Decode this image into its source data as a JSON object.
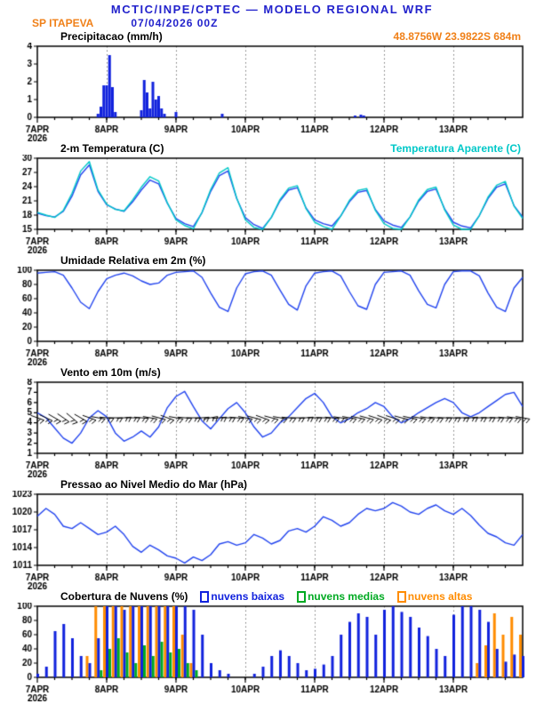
{
  "header": {
    "title": "MCTIC/INPE/CPTEC — MODELO REGIONAL WRF",
    "station": "SP ITAPEVA",
    "run": "07/04/2026 00Z",
    "location": "48.8756W 23.9822S 684m"
  },
  "colors": {
    "blue": "#2222cc",
    "orange": "#f08018",
    "line_blue": "#2244ee",
    "cyan": "#00c8c8",
    "green": "#00aa22",
    "bar_orange": "#ff8c00",
    "black": "#000000"
  },
  "x_axis": {
    "labels": [
      "7APR",
      "8APR",
      "9APR",
      "10APR",
      "11APR",
      "12APR",
      "13APR"
    ],
    "day_hours": [
      0,
      24,
      48,
      72,
      96,
      120,
      144
    ],
    "hours_total": 168,
    "year": "2026"
  },
  "chart_data": [
    {
      "type": "bar",
      "title": "Precipitacao (mm/h)",
      "ylim": [
        0,
        4
      ],
      "yticks": [
        0,
        1,
        2,
        3,
        4
      ],
      "color": "#1122dd",
      "points": [
        [
          21,
          0.2
        ],
        [
          22,
          0.6
        ],
        [
          23,
          1.8
        ],
        [
          24,
          1.8
        ],
        [
          25,
          3.5
        ],
        [
          26,
          1.7
        ],
        [
          27,
          0.3
        ],
        [
          36,
          0.4
        ],
        [
          37,
          2.1
        ],
        [
          38,
          1.4
        ],
        [
          39,
          0.5
        ],
        [
          40,
          2.0
        ],
        [
          41,
          1.0
        ],
        [
          42,
          1.2
        ],
        [
          43,
          0.5
        ],
        [
          44,
          0.2
        ],
        [
          48,
          0.3
        ],
        [
          64,
          0.2
        ],
        [
          110,
          0.1
        ],
        [
          112,
          0.15
        ],
        [
          113,
          0.1
        ]
      ]
    },
    {
      "type": "line",
      "title": "2-m Temperatura (C)",
      "right_label": "Temperatura Aparente (C)",
      "ylim": [
        15,
        30
      ],
      "yticks": [
        15,
        18,
        21,
        24,
        27,
        30
      ],
      "step_hours": 3,
      "series": [
        {
          "name": "2-m Temperatura (C)",
          "color": "#2244ee",
          "values": [
            18.4,
            17.9,
            17.6,
            18.8,
            22.0,
            26.5,
            28.6,
            23.0,
            20.2,
            19.3,
            18.8,
            20.8,
            23.3,
            25.4,
            24.6,
            20.5,
            17.3,
            16.2,
            15.6,
            18.5,
            23.0,
            26.3,
            27.3,
            21.5,
            17.5,
            16.0,
            15.2,
            17.5,
            21.0,
            23.3,
            23.8,
            19.5,
            17.0,
            16.2,
            15.7,
            17.8,
            20.8,
            22.8,
            23.2,
            19.2,
            16.8,
            15.9,
            15.4,
            17.6,
            20.9,
            23.0,
            23.5,
            19.3,
            16.5,
            15.7,
            15.3,
            17.9,
            21.5,
            23.9,
            24.6,
            20.0,
            17.6
          ]
        },
        {
          "name": "Temperatura Aparente (C)",
          "color": "#00c8c8",
          "values": [
            18.6,
            18.0,
            17.5,
            19.0,
            22.6,
            27.3,
            29.3,
            23.3,
            20.3,
            19.2,
            18.9,
            21.2,
            23.9,
            26.1,
            25.2,
            20.6,
            17.0,
            15.8,
            15.1,
            18.6,
            23.4,
            26.9,
            28.0,
            21.6,
            17.0,
            15.4,
            14.6,
            17.5,
            21.3,
            23.7,
            24.2,
            19.4,
            16.5,
            15.6,
            15.0,
            17.8,
            21.1,
            23.2,
            23.6,
            19.0,
            16.2,
            15.2,
            14.7,
            17.6,
            21.2,
            23.4,
            23.9,
            19.1,
            15.9,
            15.0,
            14.6,
            17.9,
            21.8,
            24.3,
            25.1,
            19.9,
            17.3
          ]
        }
      ]
    },
    {
      "type": "line",
      "title": "Umidade Relativa em 2m (%)",
      "ylim": [
        0,
        100
      ],
      "yticks": [
        0,
        20,
        40,
        60,
        80,
        100
      ],
      "step_hours": 3,
      "series": [
        {
          "name": "Umidade Relativa em 2m (%)",
          "color": "#2244ee",
          "values": [
            96,
            97,
            98,
            93,
            75,
            55,
            46,
            70,
            88,
            93,
            96,
            92,
            85,
            80,
            82,
            93,
            97,
            98,
            99,
            90,
            68,
            48,
            42,
            75,
            95,
            98,
            99,
            93,
            72,
            52,
            44,
            78,
            96,
            98,
            99,
            92,
            70,
            50,
            45,
            80,
            97,
            98,
            99,
            93,
            71,
            52,
            47,
            80,
            98,
            99,
            99,
            92,
            68,
            48,
            42,
            75,
            90
          ]
        }
      ]
    },
    {
      "type": "wind",
      "title": "Vento em 10m (m/s)",
      "ylim": [
        1,
        8
      ],
      "yticks": [
        1,
        2,
        3,
        4,
        5,
        6,
        7,
        8
      ],
      "step_hours": 3,
      "barb_y": 4.5,
      "series": [
        {
          "name": "Vento em 10m (m/s)",
          "color": "#2244ee",
          "values": [
            5.0,
            4.5,
            3.5,
            2.5,
            2.0,
            3.0,
            4.5,
            5.2,
            4.6,
            3.0,
            2.2,
            2.6,
            3.2,
            2.6,
            3.6,
            5.5,
            6.6,
            7.1,
            5.6,
            4.2,
            3.4,
            4.4,
            5.4,
            6.0,
            5.0,
            3.6,
            2.6,
            3.0,
            4.0,
            4.6,
            5.5,
            6.4,
            6.9,
            6.0,
            4.6,
            4.0,
            4.4,
            5.0,
            5.4,
            6.0,
            5.6,
            4.6,
            4.0,
            4.4,
            5.0,
            5.5,
            6.0,
            6.4,
            6.0,
            5.0,
            4.6,
            5.0,
            5.6,
            6.2,
            6.8,
            7.0,
            5.6
          ]
        }
      ],
      "barb_dirs": [
        110,
        115,
        120,
        125,
        130,
        120,
        110,
        100,
        95,
        90,
        85,
        90,
        95,
        100,
        105,
        110,
        100,
        95,
        90,
        85,
        80,
        85,
        90,
        95,
        100,
        105,
        110,
        105,
        100,
        95,
        90,
        85,
        90,
        92,
        95,
        98,
        100,
        102,
        105,
        108,
        110,
        108,
        105,
        102,
        100,
        98,
        95,
        92,
        90,
        88,
        85,
        88,
        90,
        92,
        95,
        98,
        100
      ]
    },
    {
      "type": "line",
      "title": "Pressao ao Nivel Medio do Mar (hPa)",
      "ylim": [
        1011,
        1023
      ],
      "yticks": [
        1011,
        1014,
        1017,
        1020,
        1023
      ],
      "step_hours": 3,
      "series": [
        {
          "name": "Pressao ao Nivel Medio do Mar (hPa)",
          "color": "#2244ee",
          "values": [
            1019.3,
            1020.6,
            1019.6,
            1017.6,
            1017.2,
            1018.2,
            1017.2,
            1016.2,
            1016.6,
            1017.6,
            1016.2,
            1014.2,
            1013.2,
            1014.4,
            1013.6,
            1012.6,
            1012.2,
            1011.4,
            1012.4,
            1011.8,
            1012.8,
            1014.6,
            1015.0,
            1014.4,
            1014.8,
            1016.2,
            1015.6,
            1014.6,
            1015.2,
            1016.8,
            1017.2,
            1016.6,
            1017.6,
            1019.2,
            1018.6,
            1017.6,
            1018.2,
            1019.6,
            1020.6,
            1020.2,
            1020.6,
            1021.6,
            1021.0,
            1020.0,
            1019.6,
            1020.6,
            1021.2,
            1020.2,
            1019.6,
            1020.6,
            1019.4,
            1017.8,
            1016.4,
            1015.8,
            1014.8,
            1014.4,
            1016.2
          ]
        }
      ]
    },
    {
      "type": "multibar",
      "title": "Cobertura de Nuvens (%)",
      "ylim": [
        0,
        100
      ],
      "yticks": [
        0,
        20,
        40,
        60,
        80,
        100
      ],
      "step_hours": 3,
      "series": [
        {
          "name": "nuvens baixas",
          "color": "#1122dd",
          "values": [
            5,
            15,
            65,
            75,
            55,
            30,
            20,
            55,
            100,
            100,
            95,
            100,
            100,
            100,
            100,
            100,
            100,
            100,
            95,
            60,
            20,
            10,
            5,
            0,
            0,
            5,
            15,
            30,
            38,
            30,
            20,
            10,
            12,
            18,
            30,
            60,
            78,
            90,
            85,
            60,
            95,
            100,
            92,
            85,
            70,
            58,
            40,
            30,
            88,
            100,
            100,
            95,
            78,
            40,
            22,
            32,
            30
          ]
        },
        {
          "name": "nuvens medias",
          "color": "#00aa22",
          "values": [
            0,
            0,
            0,
            0,
            0,
            0,
            0,
            10,
            40,
            55,
            35,
            20,
            45,
            30,
            50,
            35,
            40,
            20,
            10,
            0,
            0,
            0,
            0,
            0,
            0,
            0,
            0,
            0,
            0,
            0,
            0,
            0,
            0,
            0,
            0,
            0,
            0,
            0,
            0,
            0,
            0,
            0,
            0,
            0,
            0,
            0,
            0,
            0,
            0,
            0,
            0,
            0,
            0,
            0,
            0,
            0,
            0
          ]
        },
        {
          "name": "nuvens altas",
          "color": "#ff8c00",
          "values": [
            0,
            0,
            0,
            0,
            0,
            0,
            30,
            100,
            100,
            100,
            100,
            100,
            100,
            100,
            100,
            100,
            100,
            60,
            20,
            0,
            0,
            0,
            0,
            0,
            0,
            0,
            0,
            0,
            0,
            0,
            0,
            0,
            0,
            0,
            0,
            0,
            0,
            0,
            0,
            0,
            0,
            0,
            0,
            0,
            0,
            0,
            0,
            0,
            0,
            0,
            0,
            20,
            45,
            90,
            60,
            85,
            60
          ]
        }
      ]
    }
  ]
}
